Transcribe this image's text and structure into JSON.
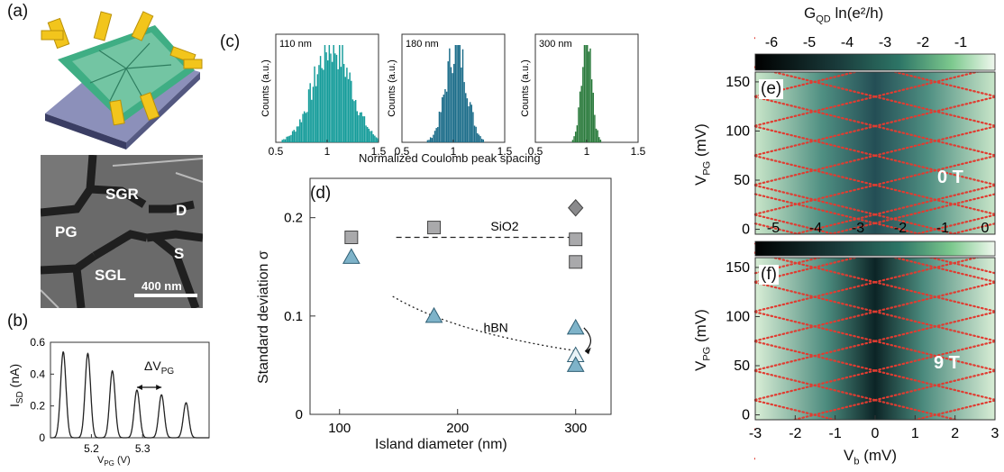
{
  "panels": {
    "a": {
      "label": "(a)",
      "sem_labels": [
        "SGR",
        "D",
        "PG",
        "S",
        "SGL"
      ],
      "scale_bar": "400 nm"
    },
    "b": {
      "label": "(b)",
      "ylabel": "I",
      "ylabel_sub": "SD",
      "ylabel_unit": "(nA)",
      "xlabel": "V",
      "xlabel_sub": "PG",
      "xlabel_unit": "(V)",
      "annotation": "ΔV",
      "annotation_sub": "PG"
    },
    "c": {
      "label": "(c)",
      "ylabel": "Counts (a.u.)",
      "xlabel": "Normalized Coulomb peak spacing"
    },
    "d": {
      "label": "(d)",
      "xlabel": "Island diameter (nm)",
      "ylabel": "Standard deviation σ",
      "sio2_label": "SiO2",
      "hbn_label": "hBN"
    },
    "e": {
      "label": "(e)",
      "field": "0 T"
    },
    "f": {
      "label": "(f)",
      "field": "9 T"
    },
    "colorbar": {
      "title": "G",
      "title_sub": "QD",
      "title_rest": " ln(e²/h)",
      "ticks_top": [
        "-6",
        "-5",
        "-4",
        "-3",
        "-2",
        "-1"
      ],
      "ticks_mid": [
        "-5",
        "-4",
        "-3",
        "-2",
        "-1",
        "0"
      ]
    },
    "ef_axes": {
      "ylabel": "V",
      "ylabel_sub": "PG",
      "ylabel_unit": "(mV)",
      "xlabel": "V",
      "xlabel_sub": "b",
      "xlabel_unit": "(mV)"
    }
  },
  "chart_data": [
    {
      "type": "line",
      "panel": "b",
      "xlim": [
        5.12,
        5.43
      ],
      "ylim": [
        0,
        0.6
      ],
      "xticks": [
        "5.2",
        "5.3"
      ],
      "yticks": [
        "0",
        "0.2",
        "0.4",
        "0.6"
      ],
      "peaks": {
        "x": [
          5.145,
          5.193,
          5.241,
          5.289,
          5.337,
          5.385
        ],
        "y": [
          0.54,
          0.53,
          0.42,
          0.3,
          0.27,
          0.22
        ]
      }
    },
    {
      "type": "bar",
      "panel": "c",
      "xlim": [
        0.5,
        1.5
      ],
      "xticks": [
        "0.5",
        "1",
        "1.5"
      ],
      "histograms": [
        {
          "name": "110 nm",
          "color": "#159c9a",
          "mean": 1.05,
          "sd": 0.18
        },
        {
          "name": "180 nm",
          "color": "#1c6d8a",
          "mean": 1.03,
          "sd": 0.1
        },
        {
          "name": "300 nm",
          "color": "#2a7a3c",
          "mean": 1.0,
          "sd": 0.05
        }
      ]
    },
    {
      "type": "scatter",
      "panel": "d",
      "xlim": [
        75,
        330
      ],
      "ylim": [
        0,
        0.24
      ],
      "xticks": [
        "100",
        "200",
        "300"
      ],
      "yticks": [
        "0",
        "0.1",
        "0.2"
      ],
      "series": [
        {
          "name": "SiO2",
          "marker": "square",
          "x": [
            110,
            180,
            300,
            300
          ],
          "y": [
            0.18,
            0.19,
            0.178,
            0.155
          ]
        },
        {
          "name": "hBN",
          "marker": "triangle",
          "x": [
            110,
            180,
            300,
            300,
            300
          ],
          "y": [
            0.16,
            0.1,
            0.088,
            0.06,
            0.05
          ]
        },
        {
          "marker": "diamond",
          "x": [
            300
          ],
          "y": [
            0.21
          ]
        }
      ],
      "sio2_level": 0.18
    },
    {
      "type": "heatmap",
      "panel": "e",
      "xlim": [
        -3,
        3
      ],
      "ylim": [
        -5,
        160
      ],
      "yticks": [
        "0",
        "50",
        "100",
        "150"
      ],
      "field": "0 T"
    },
    {
      "type": "heatmap",
      "panel": "f",
      "xlim": [
        -3,
        3
      ],
      "ylim": [
        -5,
        160
      ],
      "yticks": [
        "0",
        "50",
        "100",
        "150"
      ],
      "xticks": [
        "-3",
        "-2",
        "-1",
        "0",
        "1",
        "2",
        "3"
      ],
      "field": "9 T"
    }
  ]
}
